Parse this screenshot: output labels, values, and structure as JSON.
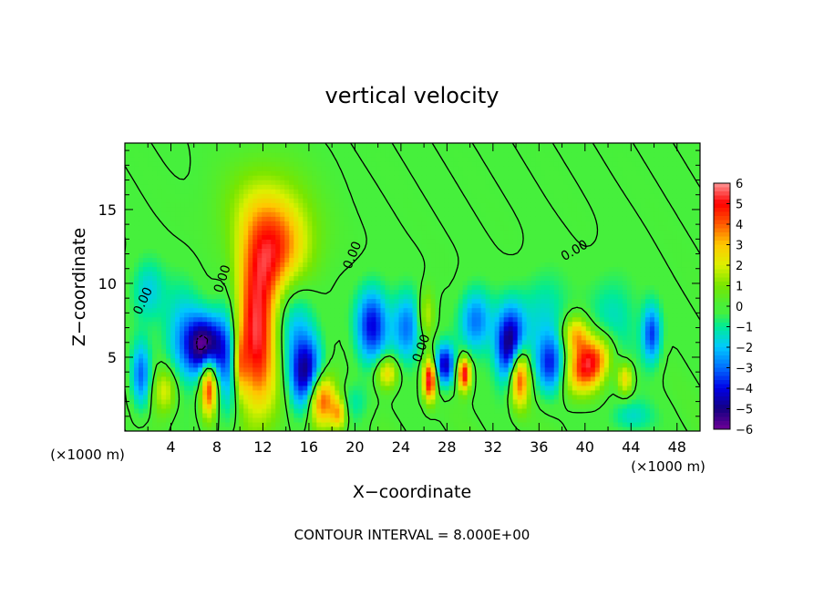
{
  "chart_data": {
    "type": "heatmap",
    "title": "vertical velocity",
    "xlabel": "X−coordinate",
    "ylabel": "Z−coordinate",
    "x_unit": "(×1000 m)",
    "x_unit_right": "(×1000 m)",
    "xlim": [
      0,
      50
    ],
    "ylim": [
      0,
      19.5
    ],
    "xticks": [
      4,
      8,
      12,
      16,
      20,
      24,
      28,
      32,
      36,
      40,
      44,
      48
    ],
    "yticks": [
      5,
      10,
      15
    ],
    "footer": "CONTOUR INTERVAL = 8.000E+00",
    "colorbar": {
      "ticks": [
        "6",
        "5",
        "4",
        "3",
        "2",
        "1",
        "0",
        "−1",
        "−2",
        "−3",
        "−4",
        "−5",
        "−6"
      ],
      "range": [
        -6,
        6
      ]
    },
    "zero_contour_label": "0.00",
    "contour_labels": [
      {
        "text": "0.00",
        "x": 1.6,
        "y": 8.8,
        "angle": -65
      },
      {
        "text": "0.00",
        "x": 8.5,
        "y": 10.3,
        "angle": -72
      },
      {
        "text": "0.00",
        "x": 19.8,
        "y": 11.9,
        "angle": -68
      },
      {
        "text": "0.00",
        "x": 25.8,
        "y": 5.6,
        "angle": -70
      },
      {
        "text": "0.00",
        "x": 39.1,
        "y": 12.2,
        "angle": -30
      }
    ],
    "features": [
      {
        "x": 11.5,
        "z": 6.8,
        "w": 5.5,
        "sx": 1.4,
        "sz": 4.0
      },
      {
        "x": 13.4,
        "z": 12.2,
        "w": 3.6,
        "sx": 2.0,
        "sz": 2.3
      },
      {
        "x": 12.0,
        "z": 15.2,
        "w": 1.3,
        "sx": 2.6,
        "sz": 2.2
      },
      {
        "x": 17.0,
        "z": 2.2,
        "w": 5.5,
        "sx": 0.9,
        "sz": 1.3
      },
      {
        "x": 18.6,
        "z": 1.2,
        "w": 3.0,
        "sx": 0.5,
        "sz": 0.8
      },
      {
        "x": 26.5,
        "z": 3.5,
        "w": 5.5,
        "sx": 0.4,
        "sz": 1.0
      },
      {
        "x": 29.5,
        "z": 3.9,
        "w": 5.5,
        "sx": 0.4,
        "sz": 0.8
      },
      {
        "x": 34.3,
        "z": 3.8,
        "w": 5.5,
        "sx": 0.6,
        "sz": 1.4
      },
      {
        "x": 40.4,
        "z": 4.6,
        "w": 5.5,
        "sx": 1.6,
        "sz": 1.1,
        "rot": -0.72
      },
      {
        "x": 39.2,
        "z": 6.6,
        "w": 3.0,
        "sx": 0.8,
        "sz": 0.9
      },
      {
        "x": 43.5,
        "z": 3.6,
        "w": 3.0,
        "sx": 0.5,
        "sz": 0.8
      },
      {
        "x": 7.3,
        "z": 3.1,
        "w": 5.0,
        "sx": 0.5,
        "sz": 1.4
      },
      {
        "x": 3.5,
        "z": 2.8,
        "w": 2.5,
        "sx": 0.8,
        "sz": 1.2
      },
      {
        "x": 22.8,
        "z": 4.0,
        "w": 3.0,
        "sx": 0.7,
        "sz": 0.8
      },
      {
        "x": 26.2,
        "z": 7.9,
        "w": 2.0,
        "sx": 0.5,
        "sz": 1.2
      },
      {
        "x": 10.0,
        "z": 4.5,
        "w": 2.5,
        "sx": 0.4,
        "sz": 1.5
      },
      {
        "x": 7.0,
        "z": 5.8,
        "w": -5.5,
        "sx": 1.1,
        "sz": 1.4
      },
      {
        "x": 5.0,
        "z": 6.2,
        "w": -2.2,
        "sx": 1.2,
        "sz": 2.5
      },
      {
        "x": 9.0,
        "z": 5.0,
        "w": -3.0,
        "sx": 0.8,
        "sz": 3.0
      },
      {
        "x": 15.8,
        "z": 3.6,
        "w": -5.0,
        "sx": 1.0,
        "sz": 1.8
      },
      {
        "x": 14.5,
        "z": 7.5,
        "w": -2.2,
        "sx": 1.4,
        "sz": 2.5
      },
      {
        "x": 21.5,
        "z": 7.2,
        "w": -4.0,
        "sx": 1.0,
        "sz": 1.8
      },
      {
        "x": 24.5,
        "z": 7.0,
        "w": -3.0,
        "sx": 0.9,
        "sz": 1.7
      },
      {
        "x": 27.8,
        "z": 4.5,
        "w": -4.5,
        "sx": 0.6,
        "sz": 1.0
      },
      {
        "x": 30.5,
        "z": 7.5,
        "w": -3.0,
        "sx": 1.0,
        "sz": 1.5
      },
      {
        "x": 33.5,
        "z": 5.8,
        "w": -5.5,
        "sx": 0.9,
        "sz": 1.8
      },
      {
        "x": 37.0,
        "z": 4.5,
        "w": -3.5,
        "sx": 0.9,
        "sz": 1.4
      },
      {
        "x": 36.5,
        "z": 8.0,
        "w": -1.5,
        "sx": 1.5,
        "sz": 2.0
      },
      {
        "x": 42.5,
        "z": 7.0,
        "w": -1.6,
        "sx": 1.5,
        "sz": 2.5
      },
      {
        "x": 45.8,
        "z": 6.6,
        "w": -3.5,
        "sx": 0.6,
        "sz": 1.4
      },
      {
        "x": 1.4,
        "z": 3.8,
        "w": -3.0,
        "sx": 0.6,
        "sz": 1.6
      },
      {
        "x": 2.0,
        "z": 9.5,
        "w": -1.8,
        "sx": 1.0,
        "sz": 1.5
      },
      {
        "x": 44.0,
        "z": 1.0,
        "w": -1.5,
        "sx": 1.3,
        "sz": 0.8
      },
      {
        "x": 20.0,
        "z": 2.0,
        "w": -1.2,
        "sx": 1.0,
        "sz": 1.0
      }
    ]
  }
}
